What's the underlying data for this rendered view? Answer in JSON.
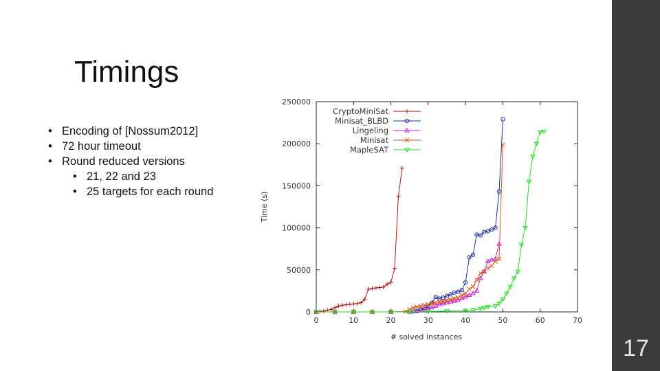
{
  "slide": {
    "title": "Timings",
    "page_number": "17",
    "bullets": [
      {
        "text": "Encoding of [Nossum2012]",
        "level": 1
      },
      {
        "text": "72 hour timeout",
        "level": 1
      },
      {
        "text": "Round reduced versions",
        "level": 1
      },
      {
        "text": "21, 22 and 23",
        "level": 2
      },
      {
        "text": "25 targets for each round",
        "level": 2
      }
    ],
    "sidebar_color": "#3b3b3b"
  },
  "chart_data": {
    "type": "line",
    "xlabel": "# solved instances",
    "ylabel": "Time (s)",
    "xlim": [
      0,
      70
    ],
    "ylim": [
      0,
      250000
    ],
    "xticks": [
      "0",
      "10",
      "20",
      "30",
      "40",
      "50",
      "60",
      "70"
    ],
    "yticks": [
      "0",
      "50000",
      "100000",
      "150000",
      "200000",
      "250000"
    ],
    "legend_position": "top-left",
    "series": [
      {
        "name": "CryptoMiniSat",
        "color": "#b01010",
        "marker": "plus",
        "x": [
          0,
          1,
          2,
          3,
          4,
          5,
          6,
          7,
          8,
          9,
          10,
          11,
          12,
          13,
          14,
          15,
          16,
          17,
          18,
          19,
          20,
          21,
          22,
          23
        ],
        "y": [
          0,
          500,
          1000,
          2000,
          3000,
          5000,
          7000,
          8000,
          8500,
          9000,
          9500,
          10000,
          11000,
          15000,
          27000,
          28000,
          28500,
          29000,
          29500,
          33000,
          35000,
          52000,
          137000,
          171000
        ]
      },
      {
        "name": "Minisat_BLBD",
        "color": "#1a2fa0",
        "marker": "circle",
        "x": [
          0,
          5,
          10,
          15,
          20,
          25,
          26,
          27,
          28,
          29,
          30,
          31,
          32,
          33,
          34,
          35,
          36,
          37,
          38,
          39,
          40,
          41,
          42,
          43,
          44,
          45,
          46,
          47,
          48,
          49,
          50
        ],
        "y": [
          0,
          0,
          0,
          0,
          0,
          200,
          500,
          1000,
          3000,
          5000,
          7000,
          11000,
          18000,
          16000,
          17000,
          19000,
          21000,
          23000,
          24000,
          26000,
          35000,
          65000,
          68000,
          92000,
          91000,
          95000,
          96000,
          98000,
          100000,
          143000,
          229000
        ]
      },
      {
        "name": "Lingeling",
        "color": "#cc22cc",
        "marker": "triangle",
        "x": [
          0,
          5,
          10,
          15,
          20,
          25,
          27,
          28,
          29,
          30,
          31,
          32,
          33,
          34,
          35,
          36,
          37,
          38,
          39,
          40,
          41,
          42,
          43,
          44,
          45,
          46,
          47,
          48,
          49
        ],
        "y": [
          0,
          0,
          0,
          0,
          0,
          200,
          800,
          1500,
          3000,
          4000,
          5000,
          7000,
          9000,
          10000,
          11000,
          12000,
          13000,
          14000,
          16000,
          18000,
          20000,
          22000,
          25000,
          40000,
          48000,
          60000,
          62000,
          63000,
          81000
        ]
      },
      {
        "name": "Minisat",
        "color": "#dd5511",
        "marker": "x",
        "x": [
          0,
          5,
          10,
          15,
          20,
          24,
          25,
          26,
          27,
          28,
          29,
          30,
          31,
          32,
          33,
          34,
          35,
          36,
          37,
          38,
          39,
          40,
          41,
          42,
          43,
          44,
          45,
          46,
          47,
          48,
          49,
          50
        ],
        "y": [
          0,
          0,
          0,
          0,
          0,
          500,
          3000,
          5000,
          6000,
          7000,
          8000,
          9000,
          10000,
          11000,
          12000,
          13000,
          14000,
          15000,
          16000,
          17000,
          20000,
          22000,
          27000,
          30000,
          38000,
          46000,
          48000,
          52000,
          55000,
          60000,
          63000,
          199000
        ]
      },
      {
        "name": "MapleSAT",
        "color": "#22dd22",
        "marker": "triangle-down",
        "x": [
          0,
          5,
          10,
          15,
          20,
          25,
          30,
          35,
          40,
          42,
          44,
          45,
          46,
          48,
          49,
          50,
          51,
          52,
          53,
          54,
          55,
          56,
          57,
          58,
          59,
          60,
          61
        ],
        "y": [
          0,
          0,
          0,
          0,
          0,
          0,
          500,
          1000,
          1500,
          2000,
          4000,
          5000,
          6000,
          7000,
          10000,
          15000,
          22000,
          30000,
          40000,
          48000,
          80000,
          100000,
          155000,
          185000,
          200000,
          214000,
          214500
        ]
      }
    ]
  }
}
